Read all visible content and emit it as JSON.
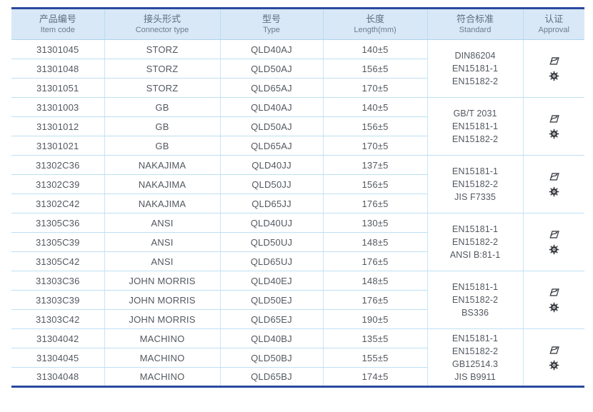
{
  "colors": {
    "accent_border": "#2a4a9f",
    "header_bg": "#d8e8f6",
    "grid_line": "#bedff4"
  },
  "table": {
    "columns": [
      {
        "key": "item-code",
        "zh": "产品编号",
        "en": "Item code"
      },
      {
        "key": "connector-type",
        "zh": "接头形式",
        "en": "Connector type"
      },
      {
        "key": "type",
        "zh": "型号",
        "en": "Type"
      },
      {
        "key": "length",
        "zh": "长度",
        "en": "Length(mm)"
      },
      {
        "key": "standard",
        "zh": "符合标准",
        "en": "Standard"
      },
      {
        "key": "approval",
        "zh": "认证",
        "en": "Approval"
      }
    ],
    "approval_icons": [
      "certification-stamp-icon",
      "gear-seal-icon"
    ],
    "groups": [
      {
        "rows": [
          {
            "code": "31301045",
            "connector": "STORZ",
            "type": "QLD40AJ",
            "length": "140±5"
          },
          {
            "code": "31301048",
            "connector": "STORZ",
            "type": "QLD50AJ",
            "length": "156±5"
          },
          {
            "code": "31301051",
            "connector": "STORZ",
            "type": "QLD65AJ",
            "length": "170±5"
          }
        ],
        "standards": [
          "DIN86204",
          "EN15181-1",
          "EN15182-2"
        ]
      },
      {
        "rows": [
          {
            "code": "31301003",
            "connector": "GB",
            "type": "QLD40AJ",
            "length": "140±5"
          },
          {
            "code": "31301012",
            "connector": "GB",
            "type": "QLD50AJ",
            "length": "156±5"
          },
          {
            "code": "31301021",
            "connector": "GB",
            "type": "QLD65AJ",
            "length": "170±5"
          }
        ],
        "standards": [
          "GB/T 2031",
          "EN15181-1",
          "EN15182-2"
        ]
      },
      {
        "rows": [
          {
            "code": "31302C36",
            "connector": "NAKAJIMA",
            "type": "QLD40JJ",
            "length": "137±5"
          },
          {
            "code": "31302C39",
            "connector": "NAKAJIMA",
            "type": "QLD50JJ",
            "length": "156±5"
          },
          {
            "code": "31302C42",
            "connector": "NAKAJIMA",
            "type": "QLD65JJ",
            "length": "176±5"
          }
        ],
        "standards": [
          "EN15181-1",
          "EN15182-2",
          "JIS F7335"
        ]
      },
      {
        "rows": [
          {
            "code": "31305C36",
            "connector": "ANSI",
            "type": "QLD40UJ",
            "length": "130±5"
          },
          {
            "code": "31305C39",
            "connector": "ANSI",
            "type": "QLD50UJ",
            "length": "148±5"
          },
          {
            "code": "31305C42",
            "connector": "ANSI",
            "type": "QLD65UJ",
            "length": "176±5"
          }
        ],
        "standards": [
          "EN15181-1",
          "EN15182-2",
          "ANSI B:81-1"
        ]
      },
      {
        "rows": [
          {
            "code": "31303C36",
            "connector": "JOHN MORRIS",
            "type": "QLD40EJ",
            "length": "148±5"
          },
          {
            "code": "31303C39",
            "connector": "JOHN MORRIS",
            "type": "QLD50EJ",
            "length": "176±5"
          },
          {
            "code": "31303C42",
            "connector": "JOHN MORRIS",
            "type": "QLD65EJ",
            "length": "190±5"
          }
        ],
        "standards": [
          "EN15181-1",
          "EN15182-2",
          "BS336"
        ]
      },
      {
        "rows": [
          {
            "code": "31304042",
            "connector": "MACHINO",
            "type": "QLD40BJ",
            "length": "135±5"
          },
          {
            "code": "31304045",
            "connector": "MACHINO",
            "type": "QLD50BJ",
            "length": "155±5"
          },
          {
            "code": "31304048",
            "connector": "MACHINO",
            "type": "QLD65BJ",
            "length": "174±5"
          }
        ],
        "standards": [
          "EN15181-1",
          "EN15182-2",
          "GB12514.3",
          "JIS B9911"
        ]
      }
    ]
  }
}
